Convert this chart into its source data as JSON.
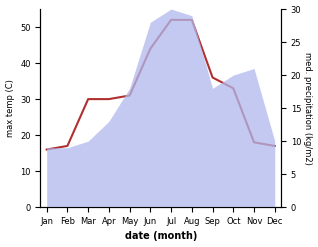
{
  "months": [
    "Jan",
    "Feb",
    "Mar",
    "Apr",
    "May",
    "Jun",
    "Jul",
    "Aug",
    "Sep",
    "Oct",
    "Nov",
    "Dec"
  ],
  "temp": [
    16,
    17,
    30,
    30,
    31,
    44,
    52,
    52,
    36,
    33,
    18,
    17
  ],
  "precip": [
    9,
    9,
    10,
    13,
    18,
    28,
    30,
    29,
    18,
    20,
    21,
    10
  ],
  "temp_color": "#b03030",
  "precip_color": "#b0b8ee",
  "precip_alpha": 0.75,
  "xlabel": "date (month)",
  "ylabel_left": "max temp (C)",
  "ylabel_right": "med. precipitation (kg/m2)",
  "ylim_left": [
    0,
    55
  ],
  "ylim_right": [
    0,
    30
  ],
  "yticks_left": [
    0,
    10,
    20,
    30,
    40,
    50
  ],
  "yticks_right": [
    0,
    5,
    10,
    15,
    20,
    25,
    30
  ],
  "bg_color": "#ffffff",
  "fig_width": 3.18,
  "fig_height": 2.47,
  "dpi": 100
}
